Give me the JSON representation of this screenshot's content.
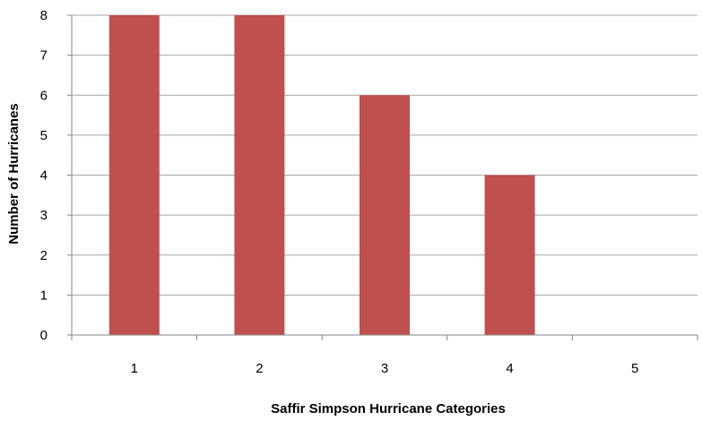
{
  "chart_data": {
    "type": "bar",
    "categories": [
      "1",
      "2",
      "3",
      "4",
      "5"
    ],
    "values": [
      8,
      8,
      6,
      4,
      0
    ],
    "xlabel": "Saffir Simpson Hurricane Categories",
    "ylabel": "Number of Hurricanes",
    "ylim": [
      0,
      8
    ],
    "yticks": [
      "0",
      "1",
      "2",
      "3",
      "4",
      "5",
      "6",
      "7",
      "8"
    ],
    "grid": true,
    "legend": "none",
    "bar_color": "#c0504d",
    "grid_color": "#a6a6a6",
    "axis_color": "#868686"
  }
}
